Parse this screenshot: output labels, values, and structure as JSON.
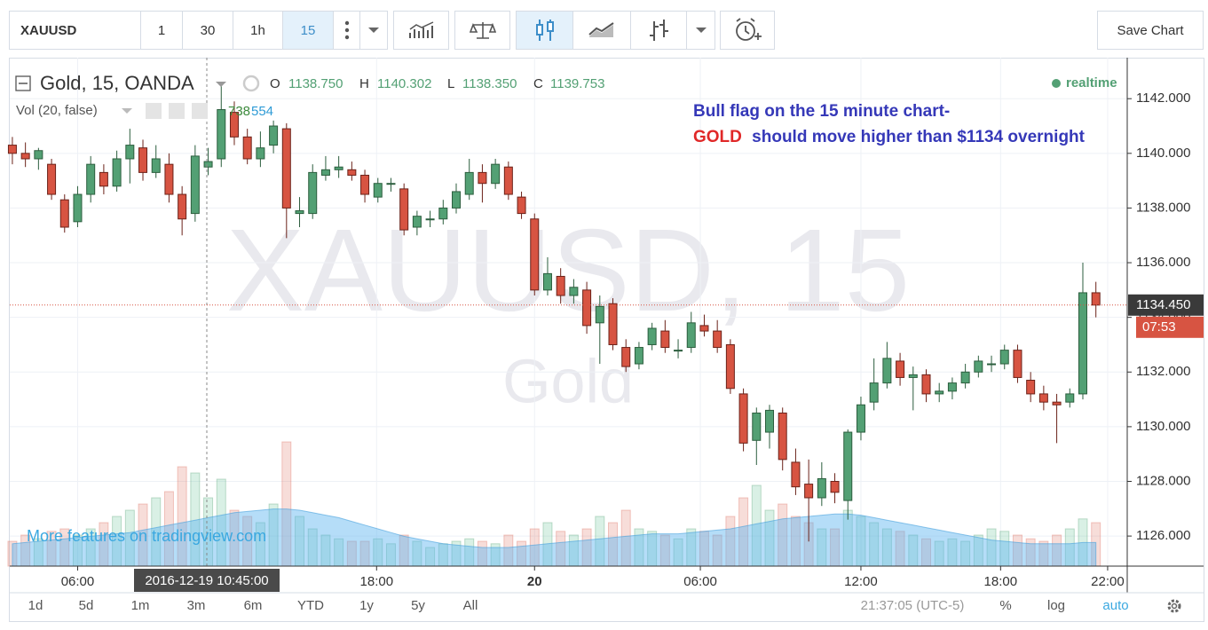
{
  "toolbar": {
    "symbol": "XAUUSD",
    "intervals": [
      "1",
      "30",
      "1h",
      "15"
    ],
    "save": "Save Chart"
  },
  "legend": {
    "title": "Gold, 15, OANDA",
    "o_label": "O",
    "o": "1138.750",
    "h_label": "H",
    "h": "1140.302",
    "l_label": "L",
    "l": "1138.350",
    "c_label": "C",
    "c": "1139.753",
    "realtime": "realtime",
    "vol_title": "Vol (20, false)",
    "vol_values": [
      "738",
      "554"
    ]
  },
  "watermark": {
    "symbol": "XAUUSD, 15",
    "name": "Gold"
  },
  "annotation": {
    "line1": "Bull flag on the 15 minute chart-",
    "line2_highlight": "GOLD",
    "line2_rest": "should move higher than $1134 overnight"
  },
  "promo": "More features on tradingview.com",
  "crosshair_label": "2016-12-19 10:45:00",
  "chart_data": {
    "type": "candlestick",
    "ylim": [
      1124.9,
      1143.5
    ],
    "yticks": [
      {
        "value": 1126,
        "label": "1126.000"
      },
      {
        "value": 1128,
        "label": "1128.000"
      },
      {
        "value": 1130,
        "label": "1130.000"
      },
      {
        "value": 1132,
        "label": "1132.000"
      },
      {
        "value": 1134,
        "label": "1134.000"
      },
      {
        "value": 1136,
        "label": "1136.000"
      },
      {
        "value": 1138,
        "label": "1138.000"
      },
      {
        "value": 1140,
        "label": "1140.000"
      },
      {
        "value": 1142,
        "label": "1142.000"
      }
    ],
    "xlim": [
      -0.2,
      85.4
    ],
    "xticks": [
      {
        "value": 5.0,
        "label": "06:00"
      },
      {
        "value": 27.9,
        "label": "18:00"
      },
      {
        "value": 40.0,
        "label": "20"
      },
      {
        "value": 52.7,
        "label": "06:00"
      },
      {
        "value": 65.0,
        "label": "12:00"
      },
      {
        "value": 75.7,
        "label": "18:00"
      },
      {
        "value": 83.9,
        "label": "22:00"
      }
    ],
    "up_color": "#53a074",
    "down_color": "#d75442",
    "candles": [
      [
        1140.3,
        1140.6,
        1139.6,
        1140.0
      ],
      [
        1140.0,
        1140.4,
        1139.5,
        1139.8
      ],
      [
        1139.8,
        1140.2,
        1139.4,
        1140.1
      ],
      [
        1139.6,
        1139.8,
        1138.3,
        1138.5
      ],
      [
        1138.3,
        1138.5,
        1137.1,
        1137.3
      ],
      [
        1137.5,
        1138.8,
        1137.3,
        1138.5
      ],
      [
        1138.5,
        1139.9,
        1138.2,
        1139.6
      ],
      [
        1139.3,
        1139.6,
        1138.5,
        1138.8
      ],
      [
        1138.8,
        1140.1,
        1138.6,
        1139.8
      ],
      [
        1139.8,
        1140.9,
        1138.9,
        1140.3
      ],
      [
        1140.2,
        1140.5,
        1139.0,
        1139.3
      ],
      [
        1139.3,
        1140.3,
        1139.1,
        1139.8
      ],
      [
        1139.6,
        1140.0,
        1138.2,
        1138.5
      ],
      [
        1138.5,
        1138.8,
        1137.0,
        1137.6
      ],
      [
        1137.8,
        1140.3,
        1137.5,
        1139.9
      ],
      [
        1139.5,
        1140.2,
        1139.2,
        1139.7
      ],
      [
        1139.8,
        1142.6,
        1139.5,
        1141.6
      ],
      [
        1141.5,
        1141.9,
        1140.3,
        1140.6
      ],
      [
        1140.6,
        1140.9,
        1139.6,
        1139.8
      ],
      [
        1139.8,
        1140.8,
        1139.5,
        1140.2
      ],
      [
        1140.3,
        1141.2,
        1140.0,
        1141.0
      ],
      [
        1140.9,
        1141.1,
        1136.9,
        1138.0
      ],
      [
        1137.8,
        1138.4,
        1137.3,
        1137.9
      ],
      [
        1137.8,
        1139.6,
        1137.6,
        1139.3
      ],
      [
        1139.2,
        1139.9,
        1139.0,
        1139.4
      ],
      [
        1139.4,
        1139.9,
        1139.1,
        1139.5
      ],
      [
        1139.4,
        1139.7,
        1139.0,
        1139.2
      ],
      [
        1139.2,
        1139.4,
        1138.2,
        1138.5
      ],
      [
        1138.4,
        1139.1,
        1138.2,
        1138.9
      ],
      [
        1138.9,
        1139.1,
        1138.6,
        1138.9
      ],
      [
        1138.7,
        1138.9,
        1137.0,
        1137.2
      ],
      [
        1137.3,
        1137.9,
        1137.0,
        1137.7
      ],
      [
        1137.6,
        1137.9,
        1137.3,
        1137.6
      ],
      [
        1137.6,
        1138.3,
        1137.4,
        1138.0
      ],
      [
        1138.0,
        1138.9,
        1137.8,
        1138.6
      ],
      [
        1138.5,
        1139.8,
        1138.3,
        1139.3
      ],
      [
        1139.3,
        1139.6,
        1138.2,
        1138.9
      ],
      [
        1138.9,
        1139.8,
        1138.7,
        1139.6
      ],
      [
        1139.5,
        1139.7,
        1138.3,
        1138.5
      ],
      [
        1138.4,
        1138.6,
        1137.6,
        1137.8
      ],
      [
        1137.6,
        1137.8,
        1134.8,
        1135.0
      ],
      [
        1135.0,
        1136.2,
        1134.8,
        1135.6
      ],
      [
        1135.5,
        1135.8,
        1134.5,
        1134.8
      ],
      [
        1134.8,
        1135.4,
        1134.5,
        1135.1
      ],
      [
        1135.0,
        1135.3,
        1133.4,
        1133.7
      ],
      [
        1133.8,
        1134.8,
        1132.3,
        1134.4
      ],
      [
        1134.5,
        1134.7,
        1132.8,
        1133.0
      ],
      [
        1132.9,
        1133.2,
        1132.0,
        1132.2
      ],
      [
        1132.3,
        1133.1,
        1132.1,
        1132.9
      ],
      [
        1133.0,
        1133.8,
        1132.8,
        1133.6
      ],
      [
        1133.5,
        1133.9,
        1132.7,
        1132.9
      ],
      [
        1132.8,
        1133.2,
        1132.5,
        1132.8
      ],
      [
        1132.9,
        1134.2,
        1132.7,
        1133.8
      ],
      [
        1133.7,
        1134.1,
        1133.3,
        1133.5
      ],
      [
        1133.5,
        1133.9,
        1132.7,
        1132.9
      ],
      [
        1133.0,
        1133.2,
        1131.2,
        1131.4
      ],
      [
        1131.2,
        1131.4,
        1129.1,
        1129.4
      ],
      [
        1129.5,
        1130.7,
        1128.6,
        1130.5
      ],
      [
        1129.8,
        1130.8,
        1129.2,
        1130.6
      ],
      [
        1130.5,
        1130.7,
        1128.4,
        1128.8
      ],
      [
        1128.7,
        1129.2,
        1127.5,
        1127.8
      ],
      [
        1127.9,
        1128.8,
        1125.8,
        1127.4
      ],
      [
        1127.4,
        1128.7,
        1127.1,
        1128.1
      ],
      [
        1128.0,
        1128.3,
        1127.2,
        1127.6
      ],
      [
        1127.3,
        1129.9,
        1126.6,
        1129.8
      ],
      [
        1129.8,
        1131.1,
        1129.5,
        1130.8
      ],
      [
        1130.9,
        1132.5,
        1130.6,
        1131.6
      ],
      [
        1131.6,
        1133.1,
        1131.4,
        1132.5
      ],
      [
        1132.4,
        1132.7,
        1131.5,
        1131.8
      ],
      [
        1131.8,
        1132.2,
        1130.6,
        1131.9
      ],
      [
        1131.9,
        1132.1,
        1130.9,
        1131.2
      ],
      [
        1131.2,
        1131.6,
        1130.9,
        1131.3
      ],
      [
        1131.3,
        1131.8,
        1131.0,
        1131.6
      ],
      [
        1131.6,
        1132.3,
        1131.4,
        1132.0
      ],
      [
        1132.0,
        1132.6,
        1131.8,
        1132.4
      ],
      [
        1132.3,
        1132.6,
        1132.0,
        1132.3
      ],
      [
        1132.3,
        1133.0,
        1132.1,
        1132.8
      ],
      [
        1132.8,
        1133.0,
        1131.6,
        1131.8
      ],
      [
        1131.7,
        1132.0,
        1130.9,
        1131.2
      ],
      [
        1131.2,
        1131.5,
        1130.6,
        1130.9
      ],
      [
        1130.9,
        1131.2,
        1129.4,
        1130.8
      ],
      [
        1130.9,
        1131.4,
        1130.7,
        1131.2
      ],
      [
        1131.2,
        1136.0,
        1131.0,
        1134.9
      ],
      [
        1134.9,
        1135.3,
        1134.0,
        1134.45
      ]
    ],
    "volume": [
      20,
      25,
      22,
      28,
      30,
      25,
      30,
      35,
      40,
      45,
      50,
      55,
      60,
      80,
      75,
      55,
      70,
      45,
      40,
      35,
      50,
      100,
      40,
      30,
      25,
      22,
      20,
      20,
      22,
      18,
      25,
      20,
      15,
      18,
      20,
      22,
      20,
      18,
      25,
      20,
      30,
      35,
      28,
      25,
      30,
      40,
      35,
      45,
      30,
      28,
      25,
      22,
      30,
      28,
      25,
      40,
      55,
      65,
      45,
      50,
      40,
      35,
      30,
      30,
      45,
      40,
      35,
      30,
      28,
      25,
      22,
      20,
      22,
      20,
      25,
      30,
      28,
      25,
      22,
      20,
      25,
      30,
      38,
      35
    ],
    "volume_ma": [
      18,
      19,
      20,
      21,
      22,
      23,
      24,
      25,
      26,
      27,
      29,
      31,
      33,
      35,
      37,
      39,
      41,
      43,
      44,
      45,
      46,
      46,
      45,
      43,
      41,
      39,
      36,
      33,
      30,
      27,
      24,
      22,
      20,
      18,
      17,
      16,
      15,
      15,
      15,
      16,
      17,
      18,
      19,
      20,
      21,
      22,
      23,
      24,
      25,
      26,
      26,
      26,
      27,
      28,
      29,
      30,
      32,
      34,
      36,
      38,
      39,
      40,
      41,
      42,
      42,
      41,
      39,
      37,
      35,
      33,
      31,
      29,
      27,
      25,
      23,
      21,
      20,
      19,
      18,
      18,
      18,
      18,
      19,
      19
    ],
    "last_price": {
      "value": 1134.45,
      "label": "1134.450"
    },
    "countdown": "07:53"
  },
  "bottom_bar": {
    "ranges": [
      "1d",
      "5d",
      "1m",
      "3m",
      "6m",
      "YTD",
      "1y",
      "5y",
      "All"
    ],
    "clock": "21:37:05 (UTC-5)",
    "percent": "%",
    "log": "log",
    "auto": "auto"
  }
}
